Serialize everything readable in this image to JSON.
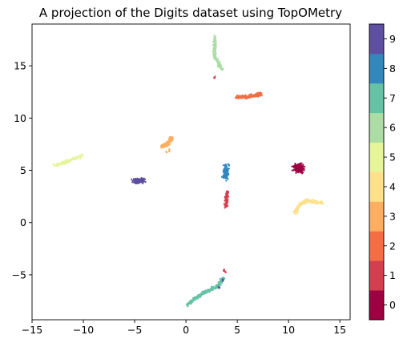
{
  "chart_data": {
    "type": "scatter",
    "title": "A projection of the Digits dataset using TopOMetry",
    "xlabel": "",
    "ylabel": "",
    "xlim": [
      -15,
      16
    ],
    "ylim": [
      -9.3,
      19.0
    ],
    "x_ticks": [
      -15,
      -10,
      -5,
      0,
      5,
      10,
      15
    ],
    "y_ticks": [
      -5,
      0,
      5,
      10,
      15
    ],
    "x_tick_labels": [
      "−15",
      "−10",
      "−5",
      "0",
      "5",
      "10",
      "15"
    ],
    "y_tick_labels": [
      "−5",
      "0",
      "5",
      "10",
      "15"
    ],
    "grid": false,
    "colorbar": {
      "range": [
        -0.5,
        9.5
      ],
      "ticks": [
        0,
        1,
        2,
        3,
        4,
        5,
        6,
        7,
        8,
        9
      ],
      "tick_labels": [
        "0",
        "1",
        "2",
        "3",
        "4",
        "5",
        "6",
        "7",
        "8",
        "9"
      ],
      "colors": [
        "#9e0142",
        "#d53e4f",
        "#f46d43",
        "#fdae61",
        "#fee08b",
        "#e6f598",
        "#abdda4",
        "#66c2a5",
        "#3288bd",
        "#5e4fa2"
      ]
    },
    "clusters": [
      {
        "label": 0,
        "color": "#9e0142",
        "center": [
          11.0,
          5.2
        ],
        "spread": [
          0.45,
          0.35
        ]
      },
      {
        "label": 1,
        "color": "#d53e4f",
        "path": [
          [
            4.0,
            2.9
          ],
          [
            3.9,
            1.4
          ]
        ],
        "extra": [
          [
            3.9,
            -4.7
          ],
          [
            3.7,
            -4.6
          ],
          [
            2.8,
            13.9
          ]
        ]
      },
      {
        "label": 2,
        "color": "#f46d43",
        "path": [
          [
            4.9,
            12.0
          ],
          [
            5.9,
            12.0
          ],
          [
            6.9,
            12.2
          ],
          [
            7.3,
            12.3
          ]
        ]
      },
      {
        "label": 3,
        "color": "#fdae61",
        "path": [
          [
            -2.4,
            7.3
          ],
          [
            -1.8,
            7.5
          ],
          [
            -1.3,
            8.2
          ]
        ],
        "extra": [
          [
            -1.9,
            6.7
          ],
          [
            -1.6,
            6.9
          ]
        ]
      },
      {
        "label": 4,
        "color": "#fee08b",
        "path": [
          [
            10.6,
            0.9
          ],
          [
            11.2,
            1.8
          ],
          [
            11.8,
            2.1
          ],
          [
            13.4,
            1.9
          ]
        ]
      },
      {
        "label": 5,
        "color": "#e6f598",
        "path": [
          [
            -12.8,
            5.4
          ],
          [
            -11.7,
            5.8
          ],
          [
            -10.1,
            6.4
          ]
        ]
      },
      {
        "label": 6,
        "color": "#abdda4",
        "path": [
          [
            2.8,
            17.8
          ],
          [
            2.8,
            16.0
          ],
          [
            3.5,
            14.6
          ]
        ]
      },
      {
        "label": 7,
        "color": "#66c2a5",
        "path": [
          [
            0.1,
            -7.9
          ],
          [
            1.0,
            -7.2
          ],
          [
            2.2,
            -6.5
          ],
          [
            3.2,
            -6.0
          ],
          [
            3.6,
            -5.3
          ]
        ]
      },
      {
        "label": 8,
        "color": "#3288bd",
        "center": [
          3.9,
          4.8
        ],
        "spread": [
          0.2,
          0.55
        ],
        "extra": [
          [
            3.6,
            4.4
          ],
          [
            4.2,
            5.5
          ]
        ]
      },
      {
        "label": 9,
        "color": "#5e4fa2",
        "center": [
          -4.6,
          4.0
        ],
        "spread": [
          0.5,
          0.2
        ],
        "extra": [
          [
            3.6,
            -5.5
          ],
          [
            3.2,
            -6.2
          ]
        ]
      }
    ]
  }
}
